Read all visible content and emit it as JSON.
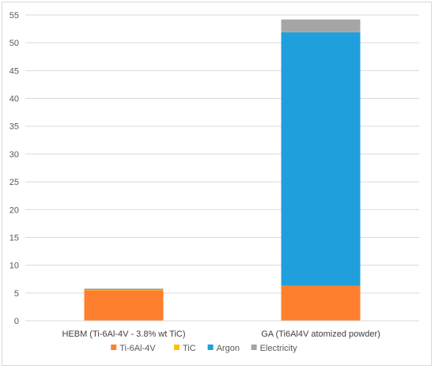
{
  "chart_data": {
    "type": "bar",
    "stacked": true,
    "title": "",
    "xlabel": "",
    "ylabel": "",
    "ylim": [
      0,
      55
    ],
    "yticks": [
      0,
      5,
      10,
      15,
      20,
      25,
      30,
      35,
      40,
      45,
      50,
      55
    ],
    "grid": "horizontal",
    "legend_position": "bottom",
    "categories": [
      "HEBM (Ti-6Al-4V - 3.8% wt TiC)",
      "GA (Ti6Al4V atomized powder)"
    ],
    "series": [
      {
        "name": "Ti-6Al-4V",
        "color": "#fe7f2d",
        "values": [
          5.5,
          6.3
        ]
      },
      {
        "name": "TiC",
        "color": "#ffc000",
        "values": [
          0.1,
          0.0
        ]
      },
      {
        "name": "Argon",
        "color": "#1f9fdc",
        "values": [
          0.1,
          45.6
        ]
      },
      {
        "name": "Electricity",
        "color": "#a5a5a5",
        "values": [
          0.1,
          2.3
        ]
      }
    ]
  }
}
